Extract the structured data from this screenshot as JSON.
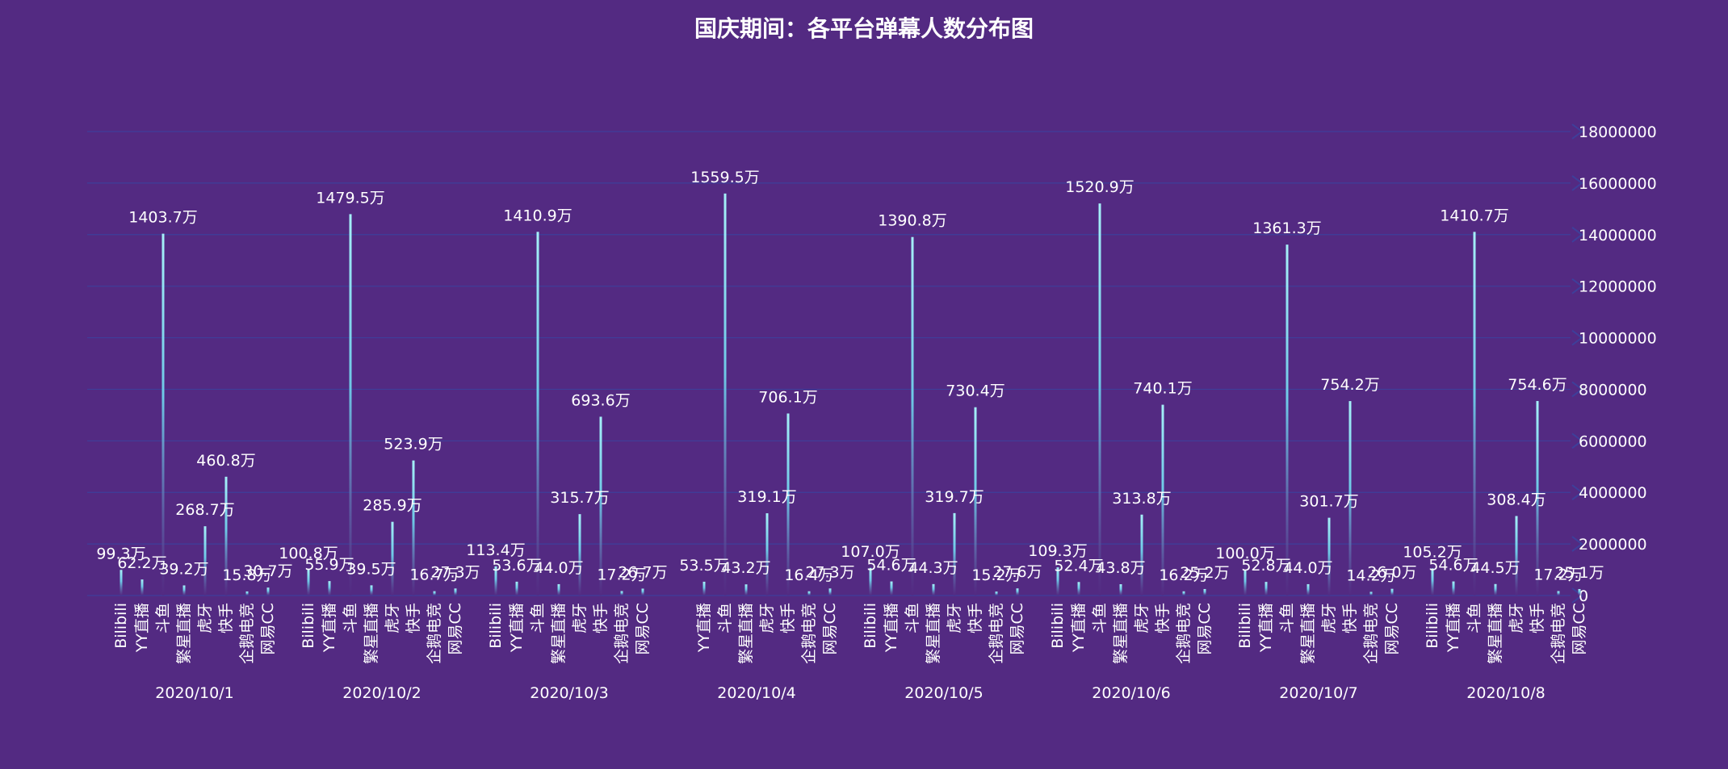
{
  "chart_data": {
    "type": "bar",
    "title": "国庆期间：各平台弹幕人数分布图",
    "y_axis_position": "right",
    "ylim": [
      0,
      18000000
    ],
    "y_ticks": [
      0,
      2000000,
      4000000,
      6000000,
      8000000,
      10000000,
      12000000,
      14000000,
      16000000,
      18000000
    ],
    "y_tick_labels": [
      "0",
      "2000000",
      "4000000",
      "6000000",
      "8000000",
      "10000000",
      "12000000",
      "14000000",
      "16000000",
      "18000000"
    ],
    "grid": true,
    "colors": {
      "background": "#532a82",
      "bar_top": "#a6f0f8",
      "bar_mid": "#6ec8e6",
      "bar_bottom": "#532a82",
      "grid": "#3e3f9a"
    },
    "groups": [
      {
        "date": "2020/10/1",
        "categories": [
          "Bilibili",
          "YY直播",
          "斗鱼",
          "繁星直播",
          "虎牙",
          "快手",
          "企鹅电竞",
          "网易CC"
        ],
        "values": [
          993000,
          622000,
          14037000,
          392000,
          2687000,
          4608000,
          158000,
          307000
        ],
        "labels": [
          "99.3万",
          "62.2万",
          "1403.7万",
          "39.2万",
          "268.7万",
          "460.8万",
          "15.8万",
          "30.7万"
        ]
      },
      {
        "date": "2020/10/2",
        "categories": [
          "Bilibili",
          "YY直播",
          "斗鱼",
          "繁星直播",
          "虎牙",
          "快手",
          "企鹅电竞",
          "网易CC"
        ],
        "values": [
          1008000,
          559000,
          14795000,
          395000,
          2859000,
          5239000,
          167000,
          273000
        ],
        "labels": [
          "100.8万",
          "55.9万",
          "1479.5万",
          "39.5万",
          "285.9万",
          "523.9万",
          "16.7万",
          "27.3万"
        ]
      },
      {
        "date": "2020/10/3",
        "categories": [
          "Bilibili",
          "YY直播",
          "斗鱼",
          "繁星直播",
          "虎牙",
          "快手",
          "企鹅电竞",
          "网易CC"
        ],
        "values": [
          1134000,
          536000,
          14109000,
          440000,
          3157000,
          6936000,
          172000,
          267000
        ],
        "labels": [
          "113.4万",
          "53.6万",
          "1410.9万",
          "44.0万",
          "315.7万",
          "693.6万",
          "17.2万",
          "26.7万"
        ]
      },
      {
        "date": "2020/10/4",
        "categories": [
          "YY直播",
          "斗鱼",
          "繁星直播",
          "虎牙",
          "快手",
          "企鹅电竞",
          "网易CC"
        ],
        "values": [
          535000,
          15595000,
          432000,
          3191000,
          7061000,
          164000,
          273000
        ],
        "labels": [
          "53.5万",
          "1559.5万",
          "43.2万",
          "319.1万",
          "706.1万",
          "16.4万",
          "27.3万"
        ]
      },
      {
        "date": "2020/10/5",
        "categories": [
          "Bilibili",
          "YY直播",
          "斗鱼",
          "繁星直播",
          "虎牙",
          "快手",
          "企鹅电竞",
          "网易CC"
        ],
        "values": [
          1070000,
          546000,
          13908000,
          443000,
          3197000,
          7304000,
          152000,
          276000
        ],
        "labels": [
          "107.0万",
          "54.6万",
          "1390.8万",
          "44.3万",
          "319.7万",
          "730.4万",
          "15.2万",
          "27.6万"
        ]
      },
      {
        "date": "2020/10/6",
        "categories": [
          "Bilibili",
          "YY直播",
          "斗鱼",
          "繁星直播",
          "虎牙",
          "快手",
          "企鹅电竞",
          "网易CC"
        ],
        "values": [
          1093000,
          524000,
          15209000,
          438000,
          3138000,
          7401000,
          162000,
          252000
        ],
        "labels": [
          "109.3万",
          "52.4万",
          "1520.9万",
          "43.8万",
          "313.8万",
          "740.1万",
          "16.2万",
          "25.2万"
        ]
      },
      {
        "date": "2020/10/7",
        "categories": [
          "Bilibili",
          "YY直播",
          "斗鱼",
          "繁星直播",
          "虎牙",
          "快手",
          "企鹅电竞",
          "网易CC"
        ],
        "values": [
          1000000,
          528000,
          13613000,
          440000,
          3017000,
          7542000,
          142000,
          260000
        ],
        "labels": [
          "100.0万",
          "52.8万",
          "1361.3万",
          "44.0万",
          "301.7万",
          "754.2万",
          "14.2万",
          "26.0万"
        ]
      },
      {
        "date": "2020/10/8",
        "categories": [
          "Bilibili",
          "YY直播",
          "斗鱼",
          "繁星直播",
          "虎牙",
          "快手",
          "企鹅电竞",
          "网易CC"
        ],
        "values": [
          1052000,
          546000,
          14107000,
          445000,
          3084000,
          7546000,
          172000,
          251000
        ],
        "labels": [
          "105.2万",
          "54.6万",
          "1410.7万",
          "44.5万",
          "308.4万",
          "754.6万",
          "17.2万",
          "25.1万"
        ]
      }
    ]
  }
}
